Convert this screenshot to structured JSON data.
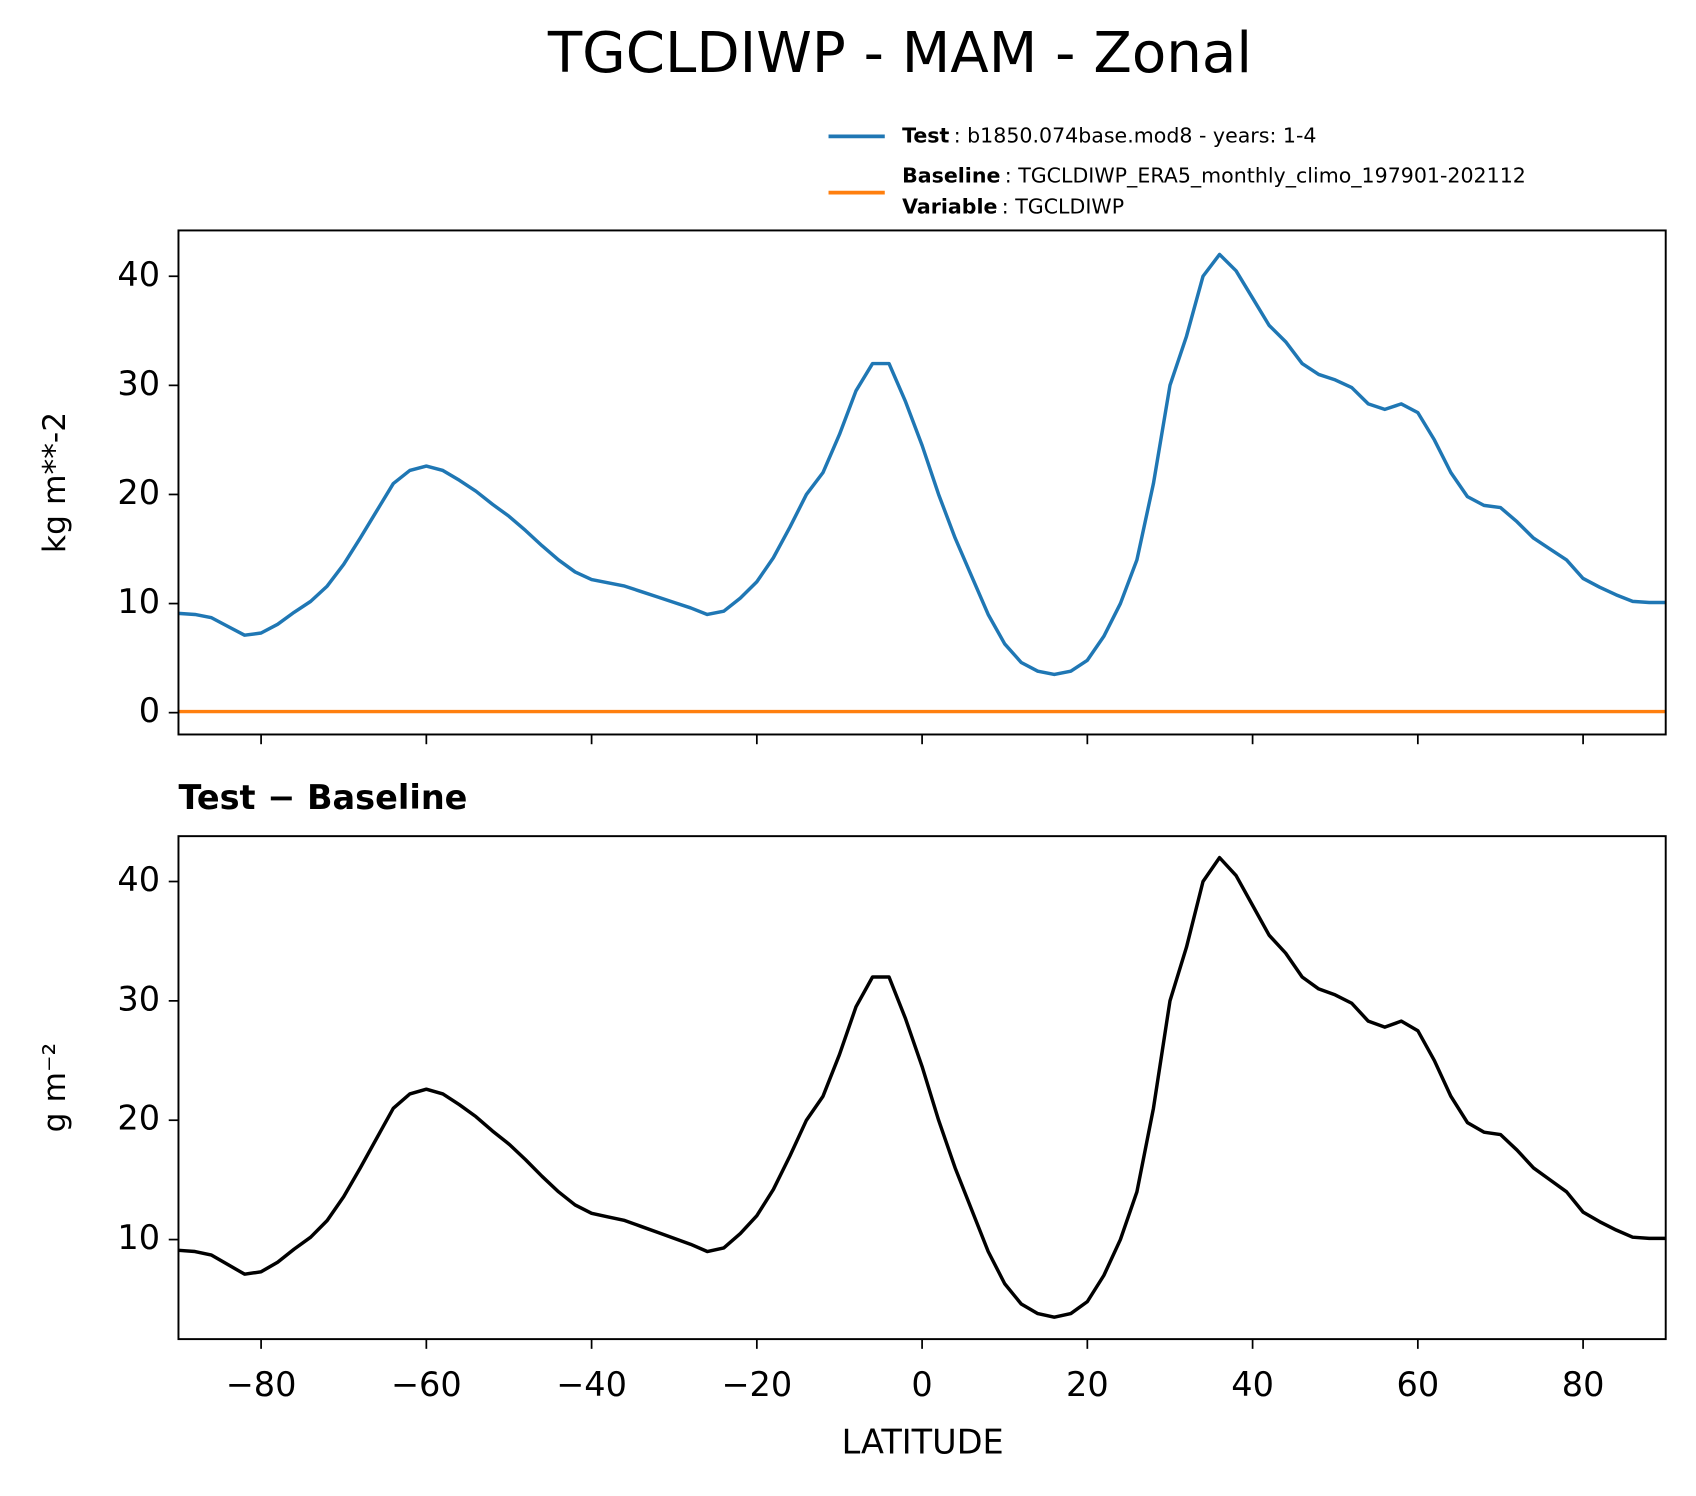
{
  "title": "TGCLDIWP - MAM - Zonal",
  "xlabel": "LATITUDE",
  "chart_data": [
    {
      "type": "line",
      "ylabel": "kg m**-2",
      "xlim": [
        -90,
        90
      ],
      "ylim": [
        -2.0,
        44.2
      ],
      "xticks": [
        -80,
        -60,
        -40,
        -20,
        0,
        20,
        40,
        60,
        80
      ],
      "yticks": [
        0,
        10,
        20,
        30,
        40
      ],
      "x": [
        -90,
        -88,
        -86,
        -84,
        -82,
        -80,
        -78,
        -76,
        -74,
        -72,
        -70,
        -68,
        -66,
        -64,
        -62,
        -60,
        -58,
        -56,
        -54,
        -52,
        -50,
        -48,
        -46,
        -44,
        -42,
        -40,
        -38,
        -36,
        -34,
        -32,
        -30,
        -28,
        -26,
        -24,
        -22,
        -20,
        -18,
        -16,
        -14,
        -12,
        -10,
        -8,
        -6,
        -4,
        -2,
        0,
        2,
        4,
        6,
        8,
        10,
        12,
        14,
        16,
        18,
        20,
        22,
        24,
        26,
        28,
        30,
        32,
        34,
        36,
        38,
        40,
        42,
        44,
        46,
        48,
        50,
        52,
        54,
        56,
        58,
        60,
        62,
        64,
        66,
        68,
        70,
        72,
        74,
        76,
        78,
        80,
        82,
        84,
        86,
        88,
        90
      ],
      "series": [
        {
          "name": "Test",
          "label": ": b1850.074base.mod8 - years: 1-4",
          "color": "#1f77b4",
          "values": [
            9.1,
            9.0,
            8.7,
            7.9,
            7.1,
            7.3,
            8.1,
            9.2,
            10.2,
            11.6,
            13.6,
            16.0,
            18.5,
            21.0,
            22.2,
            22.6,
            22.2,
            21.3,
            20.3,
            19.1,
            18.0,
            16.7,
            15.3,
            14.0,
            12.9,
            12.2,
            11.9,
            11.6,
            11.1,
            10.6,
            10.1,
            9.6,
            9.0,
            9.3,
            10.5,
            12.0,
            14.2,
            17.0,
            20.0,
            22.0,
            25.5,
            29.5,
            32.0,
            32.0,
            28.5,
            24.5,
            20.0,
            16.0,
            12.5,
            9.0,
            6.3,
            4.6,
            3.8,
            3.5,
            3.8,
            4.8,
            7.0,
            10.0,
            14.0,
            21.0,
            30.0,
            34.5,
            40.0,
            42.0,
            40.5,
            38.0,
            35.5,
            34.0,
            32.0,
            31.0,
            30.5,
            29.8,
            28.3,
            27.8,
            28.3,
            27.5,
            25.0,
            22.0,
            19.8,
            19.0,
            18.8,
            17.5,
            16.0,
            15.0,
            14.0,
            12.3,
            11.5,
            10.8,
            10.2,
            10.1,
            10.1
          ]
        },
        {
          "name": "Baseline",
          "label": ": TGCLDIWP_ERA5_monthly_climo_197901-202112",
          "color": "#ff7f0e",
          "values": [
            0.1,
            0.1,
            0.1,
            0.1,
            0.1,
            0.1,
            0.1,
            0.1,
            0.1,
            0.1,
            0.1,
            0.1,
            0.1,
            0.1,
            0.1,
            0.1,
            0.1,
            0.1,
            0.1,
            0.1,
            0.1,
            0.1,
            0.1,
            0.1,
            0.1,
            0.1,
            0.1,
            0.1,
            0.1,
            0.1,
            0.1,
            0.1,
            0.1,
            0.1,
            0.1,
            0.1,
            0.1,
            0.1,
            0.1,
            0.1,
            0.1,
            0.1,
            0.1,
            0.1,
            0.1,
            0.1,
            0.1,
            0.1,
            0.1,
            0.1,
            0.1,
            0.1,
            0.1,
            0.1,
            0.1,
            0.1,
            0.1,
            0.1,
            0.1,
            0.1,
            0.1,
            0.1,
            0.1,
            0.1,
            0.1,
            0.1,
            0.1,
            0.1,
            0.1,
            0.1,
            0.1,
            0.1,
            0.1,
            0.1,
            0.1,
            0.1,
            0.1,
            0.1,
            0.1,
            0.1,
            0.1,
            0.1,
            0.1,
            0.1,
            0.1,
            0.1,
            0.1,
            0.1,
            0.1,
            0.1,
            0.1
          ]
        }
      ],
      "legend_note": {
        "name": "Variable",
        "text": ": TGCLDIWP"
      }
    },
    {
      "type": "line",
      "title": "Test − Baseline",
      "ylabel": "g m⁻²",
      "xlim": [
        -90,
        90
      ],
      "ylim": [
        1.66,
        43.8
      ],
      "xticks": [
        {
          "value": -80,
          "label": "−80"
        },
        {
          "value": -60,
          "label": "−60"
        },
        {
          "value": -40,
          "label": "−40"
        },
        {
          "value": -20,
          "label": "−20"
        },
        0,
        20,
        40,
        60,
        80
      ],
      "yticks": [
        10,
        20,
        30,
        40
      ],
      "x": [
        -90,
        -88,
        -86,
        -84,
        -82,
        -80,
        -78,
        -76,
        -74,
        -72,
        -70,
        -68,
        -66,
        -64,
        -62,
        -60,
        -58,
        -56,
        -54,
        -52,
        -50,
        -48,
        -46,
        -44,
        -42,
        -40,
        -38,
        -36,
        -34,
        -32,
        -30,
        -28,
        -26,
        -24,
        -22,
        -20,
        -18,
        -16,
        -14,
        -12,
        -10,
        -8,
        -6,
        -4,
        -2,
        0,
        2,
        4,
        6,
        8,
        10,
        12,
        14,
        16,
        18,
        20,
        22,
        24,
        26,
        28,
        30,
        32,
        34,
        36,
        38,
        40,
        42,
        44,
        46,
        48,
        50,
        52,
        54,
        56,
        58,
        60,
        62,
        64,
        66,
        68,
        70,
        72,
        74,
        76,
        78,
        80,
        82,
        84,
        86,
        88,
        90
      ],
      "series": [
        {
          "color": "#000000",
          "values": [
            9.1,
            9.0,
            8.7,
            7.9,
            7.1,
            7.3,
            8.1,
            9.2,
            10.2,
            11.6,
            13.6,
            16.0,
            18.5,
            21.0,
            22.2,
            22.6,
            22.2,
            21.3,
            20.3,
            19.1,
            18.0,
            16.7,
            15.3,
            14.0,
            12.9,
            12.2,
            11.9,
            11.6,
            11.1,
            10.6,
            10.1,
            9.6,
            9.0,
            9.3,
            10.5,
            12.0,
            14.2,
            17.0,
            20.0,
            22.0,
            25.5,
            29.5,
            32.0,
            32.0,
            28.5,
            24.5,
            20.0,
            16.0,
            12.5,
            9.0,
            6.3,
            4.6,
            3.8,
            3.5,
            3.8,
            4.8,
            7.0,
            10.0,
            14.0,
            21.0,
            30.0,
            34.5,
            40.0,
            42.0,
            40.5,
            38.0,
            35.5,
            34.0,
            32.0,
            31.0,
            30.5,
            29.8,
            28.3,
            27.8,
            28.3,
            27.5,
            25.0,
            22.0,
            19.8,
            19.0,
            18.8,
            17.5,
            16.0,
            15.0,
            14.0,
            12.3,
            11.5,
            10.8,
            10.2,
            10.1,
            10.1
          ]
        }
      ]
    }
  ]
}
